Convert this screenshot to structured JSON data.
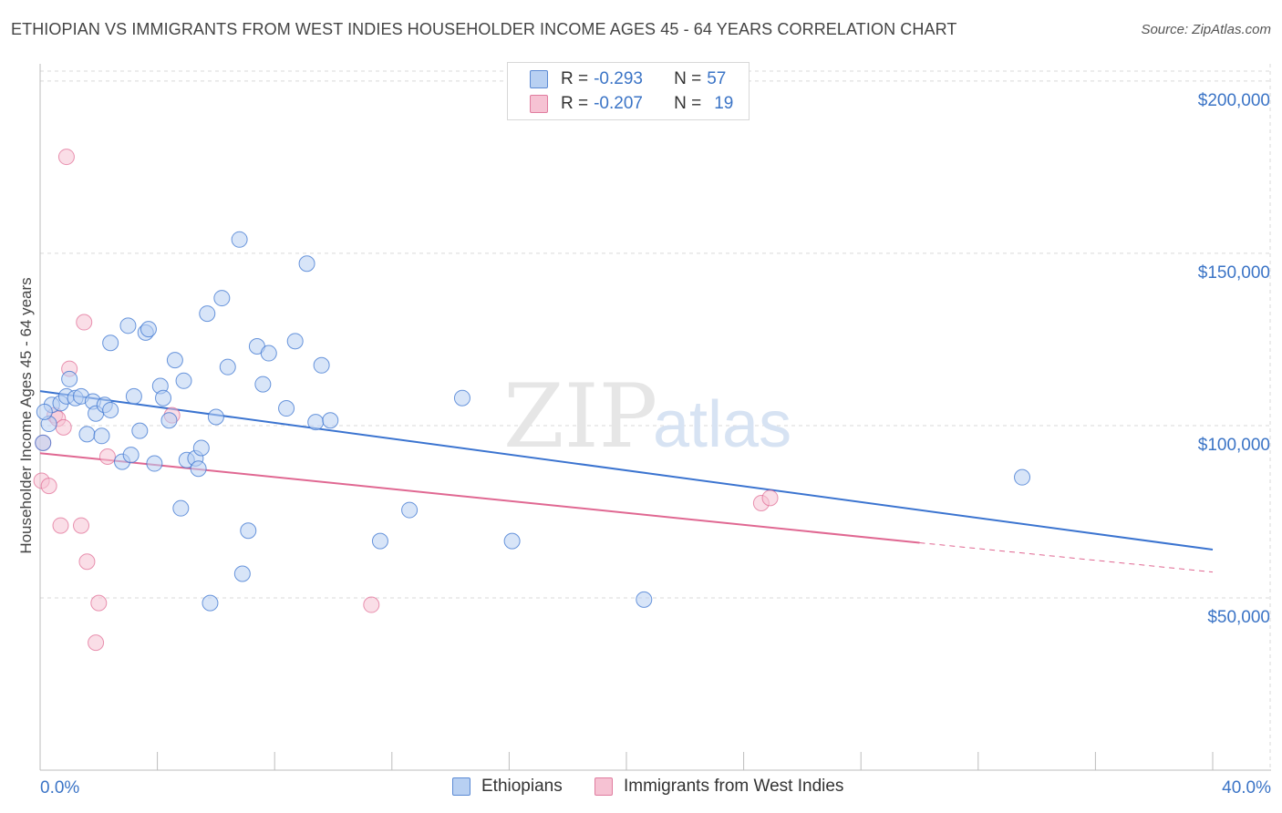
{
  "header": {
    "title": "ETHIOPIAN VS IMMIGRANTS FROM WEST INDIES HOUSEHOLDER INCOME AGES 45 - 64 YEARS CORRELATION CHART",
    "source": "Source: ZipAtlas.com"
  },
  "legend": {
    "rows": [
      {
        "r_label": "R = ",
        "r_value": "-0.293",
        "n_label": "N = ",
        "n_value": "57"
      },
      {
        "r_label": "R = ",
        "r_value": "-0.207",
        "n_label": "N = ",
        "n_value": "19"
      }
    ]
  },
  "watermark": {
    "zip": "ZIP",
    "atlas": "atlas"
  },
  "colors": {
    "blue": "#3b74d0",
    "blue_fill": "#b8d0f2",
    "pink": "#e06892",
    "pink_fill": "#f6c2d3",
    "tick_text": "#3b74c6",
    "grid": "#d9d9d9"
  },
  "chart_data": {
    "type": "scatter",
    "title": "ETHIOPIAN VS IMMIGRANTS FROM WEST INDIES HOUSEHOLDER INCOME AGES 45 - 64 YEARS CORRELATION CHART",
    "xlabel": "",
    "ylabel": "Householder Income Ages 45 - 64 years",
    "xlim": [
      0,
      40
    ],
    "ylim": [
      0,
      205000
    ],
    "x_tick_labels": [
      "0.0%",
      "40.0%"
    ],
    "y_ticks": [
      {
        "value": 50000,
        "label": "$50,000"
      },
      {
        "value": 100000,
        "label": "$100,000"
      },
      {
        "value": 150000,
        "label": "$150,000"
      },
      {
        "value": 200000,
        "label": "$200,000"
      }
    ],
    "grid": true,
    "series": [
      {
        "name": "Ethiopians",
        "color": "#3b74d0",
        "r": -0.293,
        "n": 57,
        "trend": {
          "x0": 0,
          "y0": 110000,
          "x1": 40,
          "y1": 64000
        },
        "points": [
          [
            0.1,
            95000
          ],
          [
            0.3,
            100500
          ],
          [
            0.4,
            106000
          ],
          [
            0.7,
            106500
          ],
          [
            0.9,
            108500
          ],
          [
            1.0,
            113500
          ],
          [
            1.2,
            108000
          ],
          [
            1.4,
            108500
          ],
          [
            1.6,
            97500
          ],
          [
            1.8,
            107000
          ],
          [
            1.9,
            103500
          ],
          [
            2.1,
            97000
          ],
          [
            2.2,
            106000
          ],
          [
            2.4,
            104500
          ],
          [
            2.4,
            124000
          ],
          [
            2.8,
            89500
          ],
          [
            3.0,
            129000
          ],
          [
            3.1,
            91500
          ],
          [
            3.2,
            108500
          ],
          [
            3.4,
            98500
          ],
          [
            3.6,
            127000
          ],
          [
            3.7,
            128000
          ],
          [
            3.9,
            89000
          ],
          [
            4.1,
            111500
          ],
          [
            4.2,
            108000
          ],
          [
            4.4,
            101500
          ],
          [
            4.6,
            119000
          ],
          [
            4.8,
            76000
          ],
          [
            4.9,
            113000
          ],
          [
            5.0,
            90000
          ],
          [
            5.3,
            90500
          ],
          [
            5.4,
            87500
          ],
          [
            5.5,
            93500
          ],
          [
            5.7,
            132500
          ],
          [
            5.8,
            48500
          ],
          [
            6.0,
            102500
          ],
          [
            6.2,
            137000
          ],
          [
            6.4,
            117000
          ],
          [
            6.8,
            154000
          ],
          [
            6.9,
            57000
          ],
          [
            7.1,
            69500
          ],
          [
            7.4,
            123000
          ],
          [
            7.6,
            112000
          ],
          [
            7.8,
            121000
          ],
          [
            8.4,
            105000
          ],
          [
            8.7,
            124500
          ],
          [
            9.1,
            147000
          ],
          [
            9.4,
            101000
          ],
          [
            9.6,
            117500
          ],
          [
            9.9,
            101500
          ],
          [
            11.6,
            66500
          ],
          [
            12.6,
            75500
          ],
          [
            14.4,
            108000
          ],
          [
            16.1,
            66500
          ],
          [
            20.6,
            49500
          ],
          [
            33.5,
            85000
          ],
          [
            0.15,
            104000
          ]
        ]
      },
      {
        "name": "Immigrants from West Indies",
        "color": "#e06892",
        "r": -0.207,
        "n": 19,
        "trend": {
          "x0": 0,
          "y0": 92000,
          "x1": 30,
          "y1": 66000,
          "dash_to_x": 40,
          "dash_to_y": 57500
        },
        "points": [
          [
            0.05,
            84000
          ],
          [
            0.1,
            95000
          ],
          [
            0.3,
            82500
          ],
          [
            0.5,
            103000
          ],
          [
            0.6,
            102000
          ],
          [
            0.7,
            71000
          ],
          [
            0.8,
            99500
          ],
          [
            0.9,
            178000
          ],
          [
            1.0,
            116500
          ],
          [
            1.4,
            71000
          ],
          [
            1.5,
            130000
          ],
          [
            1.6,
            60500
          ],
          [
            2.0,
            48500
          ],
          [
            1.9,
            37000
          ],
          [
            2.3,
            91000
          ],
          [
            4.5,
            103000
          ],
          [
            11.3,
            48000
          ],
          [
            24.6,
            77500
          ],
          [
            24.9,
            79000
          ]
        ]
      }
    ]
  }
}
